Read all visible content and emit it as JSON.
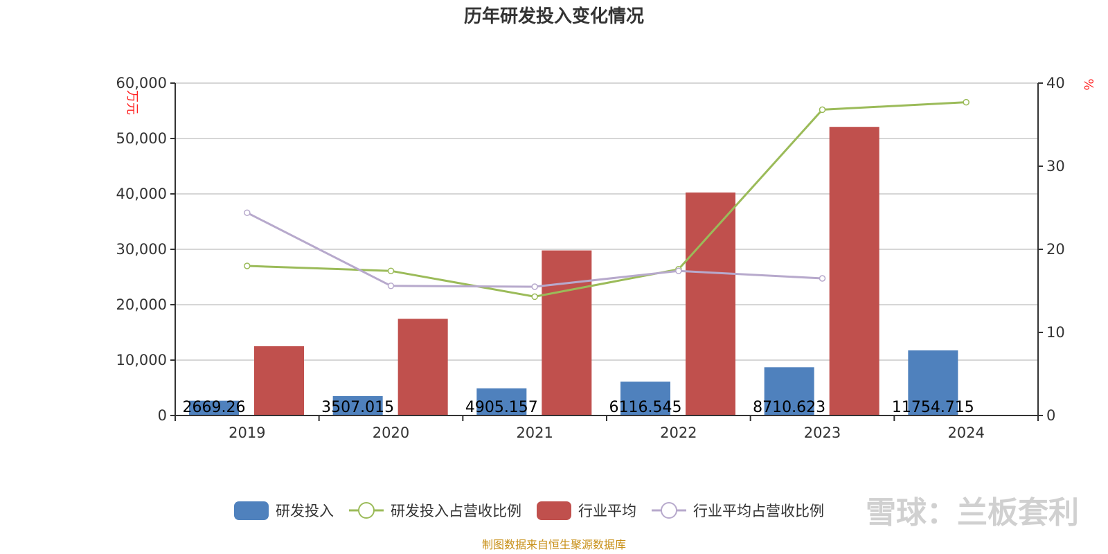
{
  "chart_data": {
    "type": "bar",
    "title": "历年研发投入变化情况",
    "categories": [
      "2019",
      "2020",
      "2021",
      "2022",
      "2023",
      "2024"
    ],
    "y_left": {
      "label": "万元",
      "range": [
        0,
        60000
      ],
      "ticks": [
        "0",
        "10,000",
        "20,000",
        "30,000",
        "40,000",
        "50,000",
        "60,000"
      ]
    },
    "y_right": {
      "label": "%",
      "range": [
        0,
        40
      ],
      "ticks": [
        "0",
        "10",
        "20",
        "30",
        "40"
      ]
    },
    "grid": true,
    "legend_placement": "bottom",
    "series": [
      {
        "name": "研发投入",
        "type": "bar",
        "axis": "left",
        "color": "#4f81bd",
        "values": [
          2669.26,
          3507.015,
          4905.157,
          6116.545,
          8710.623,
          11754.715
        ],
        "labels": [
          "2669.26",
          "3507.015",
          "4905.157",
          "6116.545",
          "8710.623",
          "11754.715"
        ]
      },
      {
        "name": "研发投入占营收比例",
        "type": "line",
        "axis": "right",
        "color": "#9bbb59",
        "values": [
          18.0,
          17.4,
          14.3,
          17.6,
          36.8,
          37.7
        ]
      },
      {
        "name": "行业平均",
        "type": "bar",
        "axis": "left",
        "color": "#c0504d",
        "values": [
          12500,
          17450,
          29800,
          40250,
          52100,
          null
        ]
      },
      {
        "name": "行业平均占营收比例",
        "type": "line",
        "axis": "right",
        "color": "#b7a9cc",
        "values": [
          24.4,
          15.6,
          15.5,
          17.4,
          16.5,
          null
        ]
      }
    ]
  },
  "source_note": "制图数据来自恒生聚源数据库",
  "watermark": "雪球：兰板套利"
}
